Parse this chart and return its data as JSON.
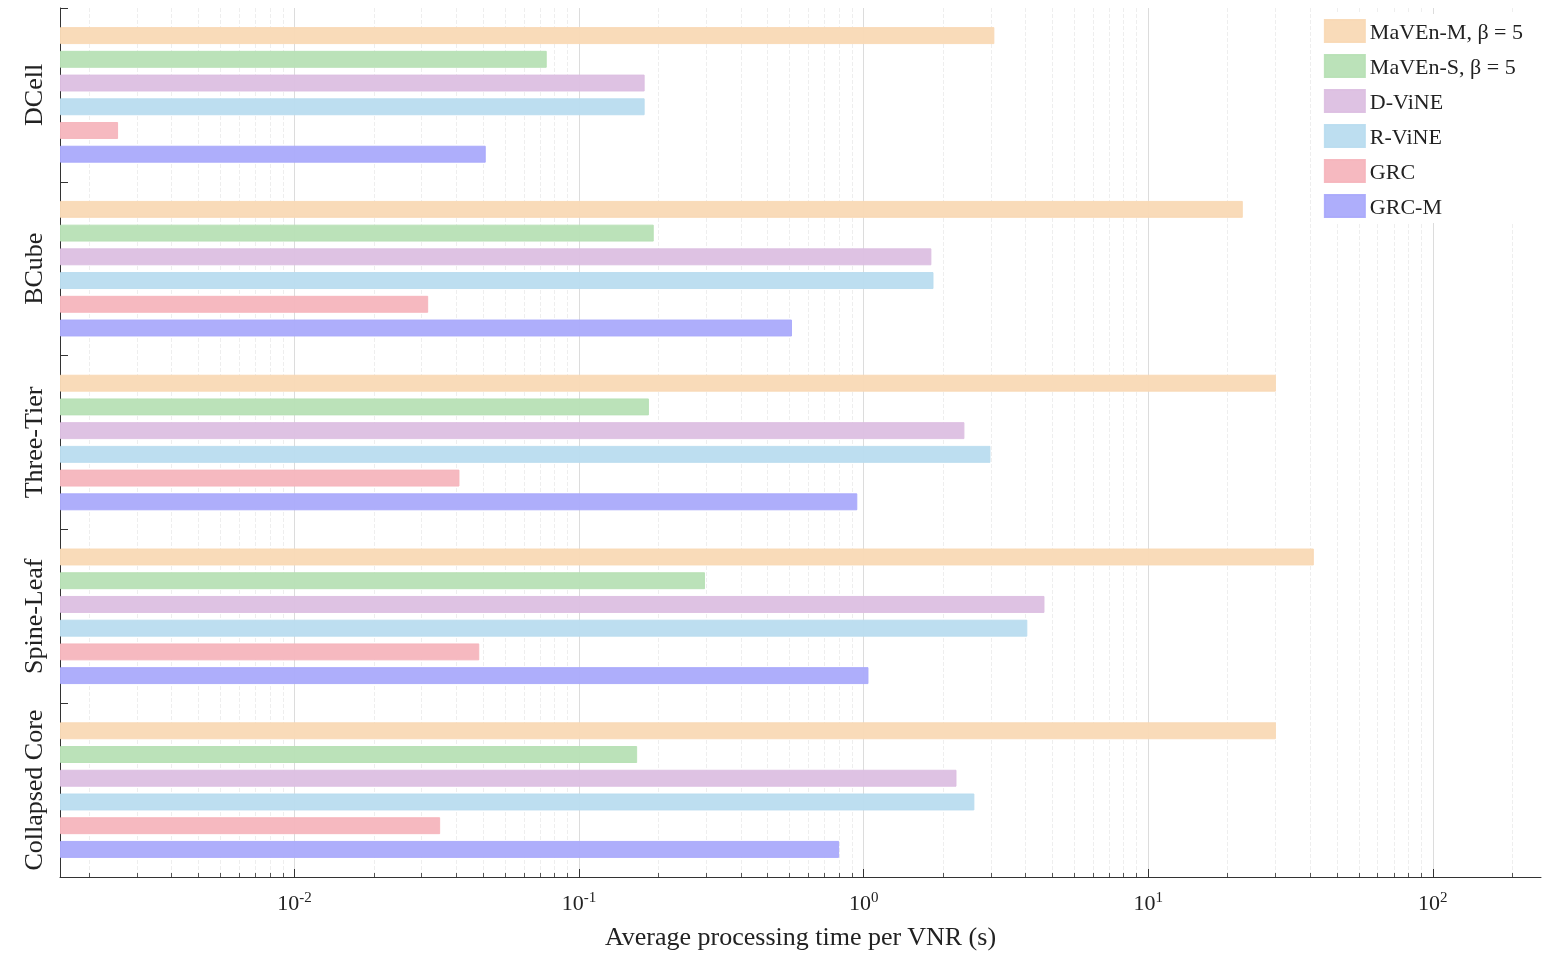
{
  "chart_data": {
    "type": "bar",
    "orientation": "horizontal",
    "log": "x",
    "xlabel": "Average processing time per VNR (s)",
    "categories": [
      "DCell",
      "BCube",
      "Three-Tier",
      "Spine-Leaf",
      "Collapsed Core"
    ],
    "series": [
      {
        "name": "MaVEn-M, β = 5",
        "color": "#f9d9b5",
        "values": [
          2.88,
          21.5,
          28.1,
          38.2,
          28.1
        ]
      },
      {
        "name": "MaVEn-S, β = 5",
        "color": "#b7e0b5",
        "values": [
          0.077,
          0.183,
          0.176,
          0.277,
          0.16
        ]
      },
      {
        "name": "D-ViNE",
        "color": "#dcbfe2",
        "values": [
          0.17,
          1.73,
          2.26,
          4.32,
          2.12
        ]
      },
      {
        "name": "R-ViNE",
        "color": "#b9dcef",
        "values": [
          0.17,
          1.76,
          2.79,
          3.76,
          2.45
        ]
      },
      {
        "name": "GRC",
        "color": "#f5b5bd",
        "values": [
          0.0024,
          0.0295,
          0.038,
          0.0446,
          0.0325
        ]
      },
      {
        "name": "GRC-M",
        "color": "#aaaafb",
        "values": [
          0.047,
          0.56,
          0.95,
          1.04,
          0.82
        ]
      }
    ],
    "xlim": [
      0.0015,
      240
    ],
    "xticks": [
      {
        "value": 0.01,
        "label": "10$^{-2}$"
      },
      {
        "value": 0.1,
        "label": "10$^{-1}$"
      },
      {
        "value": 1,
        "label": "10$^{0}$"
      },
      {
        "value": 10,
        "label": "10$^{1}$"
      },
      {
        "value": 100,
        "label": "10$^{2}$"
      }
    ],
    "grid": "x",
    "legend": "top right"
  }
}
